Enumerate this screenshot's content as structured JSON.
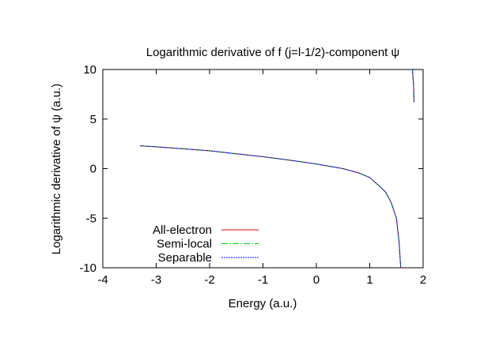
{
  "chart_data": {
    "type": "line",
    "title": "Logarithmic derivative of f (j=l-1/2)-component ψ",
    "xlabel": "Energy (a.u.)",
    "ylabel": "Logarithmic derivative of ψ (a.u.)",
    "xlim": [
      -4,
      2
    ],
    "ylim": [
      -10,
      10
    ],
    "xticks": [
      -4,
      -3,
      -2,
      -1,
      0,
      1,
      2
    ],
    "yticks": [
      -10,
      -5,
      0,
      5,
      10
    ],
    "grid": false,
    "legend_position": "bottom-left",
    "series": [
      {
        "name": "All-electron",
        "color": "#ff0000",
        "dash": "solid"
      },
      {
        "name": "Semi-local",
        "color": "#00cc00",
        "dash": "dashdot"
      },
      {
        "name": "Separable",
        "color": "#0000ff",
        "dash": "dotted"
      }
    ],
    "curve_branches": [
      [
        [
          -3.3,
          2.3
        ],
        [
          -3.0,
          2.2
        ],
        [
          -2.5,
          2.0
        ],
        [
          -2.0,
          1.8
        ],
        [
          -1.5,
          1.5
        ],
        [
          -1.0,
          1.2
        ],
        [
          -0.5,
          0.85
        ],
        [
          0.0,
          0.47
        ],
        [
          0.5,
          0.0
        ],
        [
          0.8,
          -0.45
        ],
        [
          1.0,
          -0.9
        ],
        [
          1.2,
          -1.85
        ],
        [
          1.3,
          -2.4
        ],
        [
          1.4,
          -3.4
        ],
        [
          1.5,
          -5.0
        ],
        [
          1.55,
          -7.4
        ],
        [
          1.58,
          -10
        ]
      ],
      [
        [
          1.8,
          10
        ],
        [
          1.82,
          8.5
        ],
        [
          1.83,
          6.7
        ]
      ]
    ]
  }
}
